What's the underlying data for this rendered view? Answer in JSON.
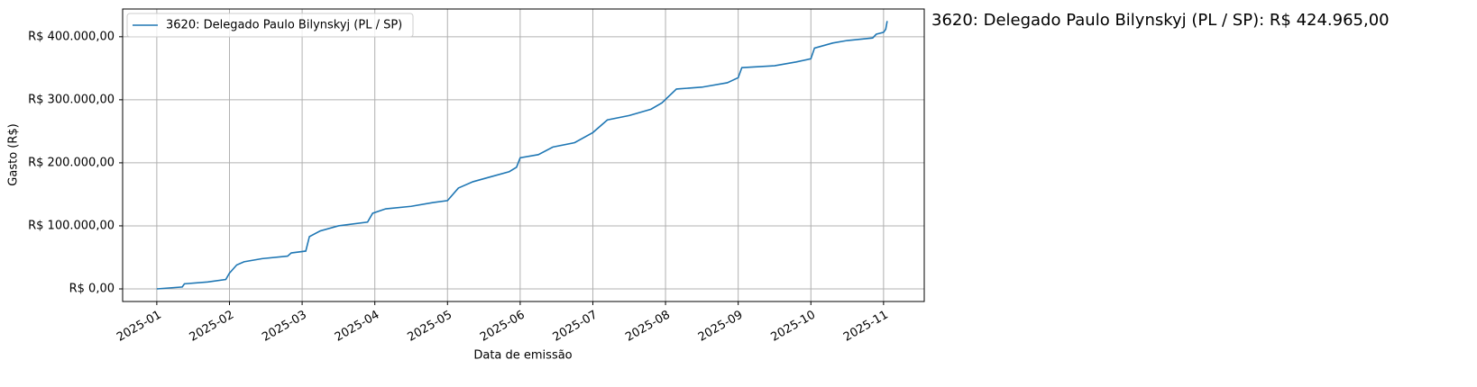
{
  "chart_data": {
    "type": "line",
    "annotation": "3620: Delegado Paulo Bilynskyj (PL / SP): R$ 424.965,00",
    "xlabel": "Data de emissão",
    "ylabel": "Gasto (R$)",
    "grid": true,
    "legend": "upper left",
    "xlim": [
      -0.47,
      10.56
    ],
    "xticks": [
      {
        "value": 0,
        "label": "2025-01"
      },
      {
        "value": 1,
        "label": "2025-02"
      },
      {
        "value": 2,
        "label": "2025-03"
      },
      {
        "value": 3,
        "label": "2025-04"
      },
      {
        "value": 4,
        "label": "2025-05"
      },
      {
        "value": 5,
        "label": "2025-06"
      },
      {
        "value": 6,
        "label": "2025-07"
      },
      {
        "value": 7,
        "label": "2025-08"
      },
      {
        "value": 8,
        "label": "2025-09"
      },
      {
        "value": 9,
        "label": "2025-10"
      },
      {
        "value": 10,
        "label": "2025-11"
      }
    ],
    "ylim": [
      -20000,
      444000
    ],
    "yticks": [
      {
        "value": 0,
        "label": "R$ 0,00"
      },
      {
        "value": 100000,
        "label": "R$ 100.000,00"
      },
      {
        "value": 200000,
        "label": "R$ 200.000,00"
      },
      {
        "value": 300000,
        "label": "R$ 300.000,00"
      },
      {
        "value": 400000,
        "label": "R$ 400.000,00"
      }
    ],
    "x": [
      0.0,
      0.35,
      0.38,
      0.7,
      0.95,
      1.0,
      1.1,
      1.2,
      1.45,
      1.8,
      1.85,
      2.05,
      2.1,
      2.25,
      2.5,
      2.9,
      2.97,
      3.15,
      3.5,
      3.8,
      4.0,
      4.15,
      4.35,
      4.6,
      4.85,
      4.95,
      5.0,
      5.25,
      5.45,
      5.75,
      6.0,
      6.2,
      6.5,
      6.8,
      6.95,
      7.15,
      7.5,
      7.85,
      8.0,
      8.05,
      8.5,
      8.8,
      9.0,
      9.05,
      9.3,
      9.5,
      9.85,
      9.9,
      10.0,
      10.03,
      10.05
    ],
    "series": [
      {
        "name": "3620: Delegado Paulo Bilynskyj (PL / SP)",
        "color": "#1f77b4",
        "values": [
          0,
          3000,
          8000,
          11000,
          15000,
          25000,
          38000,
          43000,
          48000,
          52000,
          57000,
          60000,
          83000,
          92000,
          100000,
          106000,
          120000,
          127000,
          131000,
          137000,
          140000,
          160000,
          170000,
          178000,
          186000,
          193000,
          208000,
          213000,
          225000,
          232000,
          248000,
          268000,
          275000,
          285000,
          295000,
          317000,
          320000,
          327000,
          335000,
          351000,
          354000,
          360000,
          365000,
          382000,
          390000,
          394000,
          398000,
          404000,
          407000,
          412000,
          424965
        ]
      }
    ]
  }
}
